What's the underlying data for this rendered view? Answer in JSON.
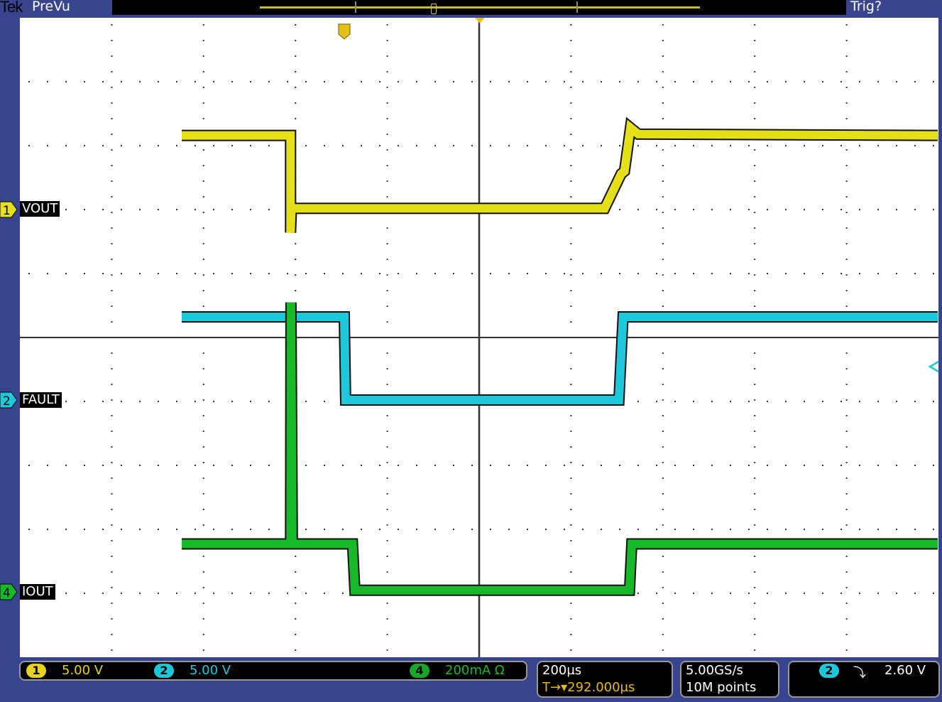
{
  "header": {
    "brand": "Tek",
    "mode": "PreVu",
    "trigger_status": "Trig?"
  },
  "channels": [
    {
      "id": "1",
      "label": "VOUT",
      "scale": "5.00 V",
      "color": "#e6e01a"
    },
    {
      "id": "2",
      "label": "FAULT",
      "scale": "5.00 V",
      "color": "#1ec8dc"
    },
    {
      "id": "4",
      "label": "IOUT",
      "scale": "200mA Ω",
      "color": "#17b82a"
    }
  ],
  "timebase": {
    "scale": "200µs",
    "trigger_delay": "292.000µs",
    "sample_rate": "5.00GS/s",
    "record_length": "10M points"
  },
  "trigger": {
    "source": "2",
    "slope_icon": "falling-edge-icon",
    "slope": "⤵",
    "level": "2.60 V"
  },
  "chart_data": {
    "type": "line",
    "grid": true,
    "x_unit": "µs (relative to trigger T)",
    "divisions": {
      "x": 10,
      "y": 10
    },
    "series": [
      {
        "name": "VOUT",
        "channel": "1",
        "unit": "V",
        "volts_per_div": 5,
        "points": [
          [
            -354,
            5.8
          ],
          [
            -117,
            5.8
          ],
          [
            -117,
            -1.8
          ],
          [
            -115,
            0.1
          ],
          [
            567,
            0.1
          ],
          [
            603,
            2.8
          ],
          [
            610,
            3.0
          ],
          [
            623,
            6.4
          ],
          [
            640,
            5.9
          ],
          [
            1292,
            5.8
          ]
        ]
      },
      {
        "name": "FAULT",
        "channel": "2",
        "unit": "V",
        "volts_per_div": 5,
        "points": [
          [
            -354,
            6.5
          ],
          [
            0,
            6.5
          ],
          [
            3,
            0.0
          ],
          [
            598,
            0.0
          ],
          [
            607,
            6.5
          ],
          [
            1292,
            6.5
          ]
        ]
      },
      {
        "name": "IOUT",
        "channel": "4",
        "unit": "mA",
        "amps_per_div_mA": 200,
        "points": [
          [
            -354,
            150
          ],
          [
            -117,
            150
          ],
          [
            -116,
            905
          ],
          [
            -113,
            150
          ],
          [
            18,
            150
          ],
          [
            23,
            5
          ],
          [
            621,
            5
          ],
          [
            626,
            150
          ],
          [
            1292,
            150
          ]
        ]
      }
    ]
  }
}
